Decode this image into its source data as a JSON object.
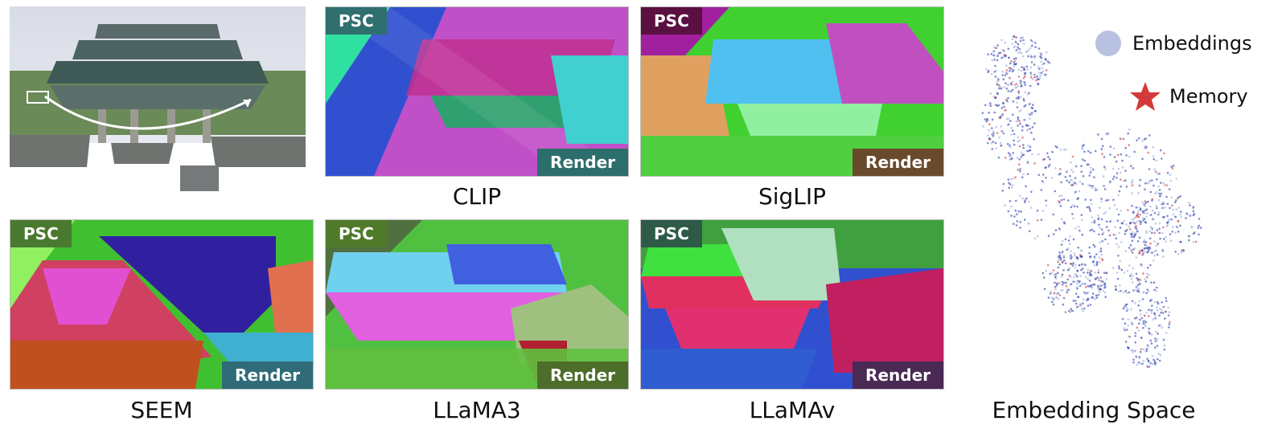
{
  "colors": {
    "point": "#2f3fae",
    "point_light": "#9aa8d8",
    "memory": "#d43a3a"
  },
  "panels": [
    {
      "id": "clip",
      "caption": "CLIP",
      "psc": "PSC",
      "render": "Render",
      "psc_bg": "#2f6f6f",
      "render_bg": "#2c6e6b"
    },
    {
      "id": "siglip",
      "caption": "SigLIP",
      "psc": "PSC",
      "render": "Render",
      "psc_bg": "#5a1040",
      "render_bg": "#6a4a2c"
    },
    {
      "id": "seem",
      "caption": "SEEM",
      "psc": "PSC",
      "render": "Render",
      "psc_bg": "#4a7a2f",
      "render_bg": "#2f6b78"
    },
    {
      "id": "llama3",
      "caption": "LLaMA3",
      "psc": "PSC",
      "render": "Render",
      "psc_bg": "#4f7a2a",
      "render_bg": "#4c6e2a"
    },
    {
      "id": "llamav",
      "caption": "LLaMAv",
      "psc": "PSC",
      "render": "Render",
      "psc_bg": "#2e5a48",
      "render_bg": "#4a2a55"
    }
  ],
  "legend": {
    "embeddings": "Embeddings",
    "memory": "Memory"
  },
  "embedding_caption": "Embedding Space"
}
